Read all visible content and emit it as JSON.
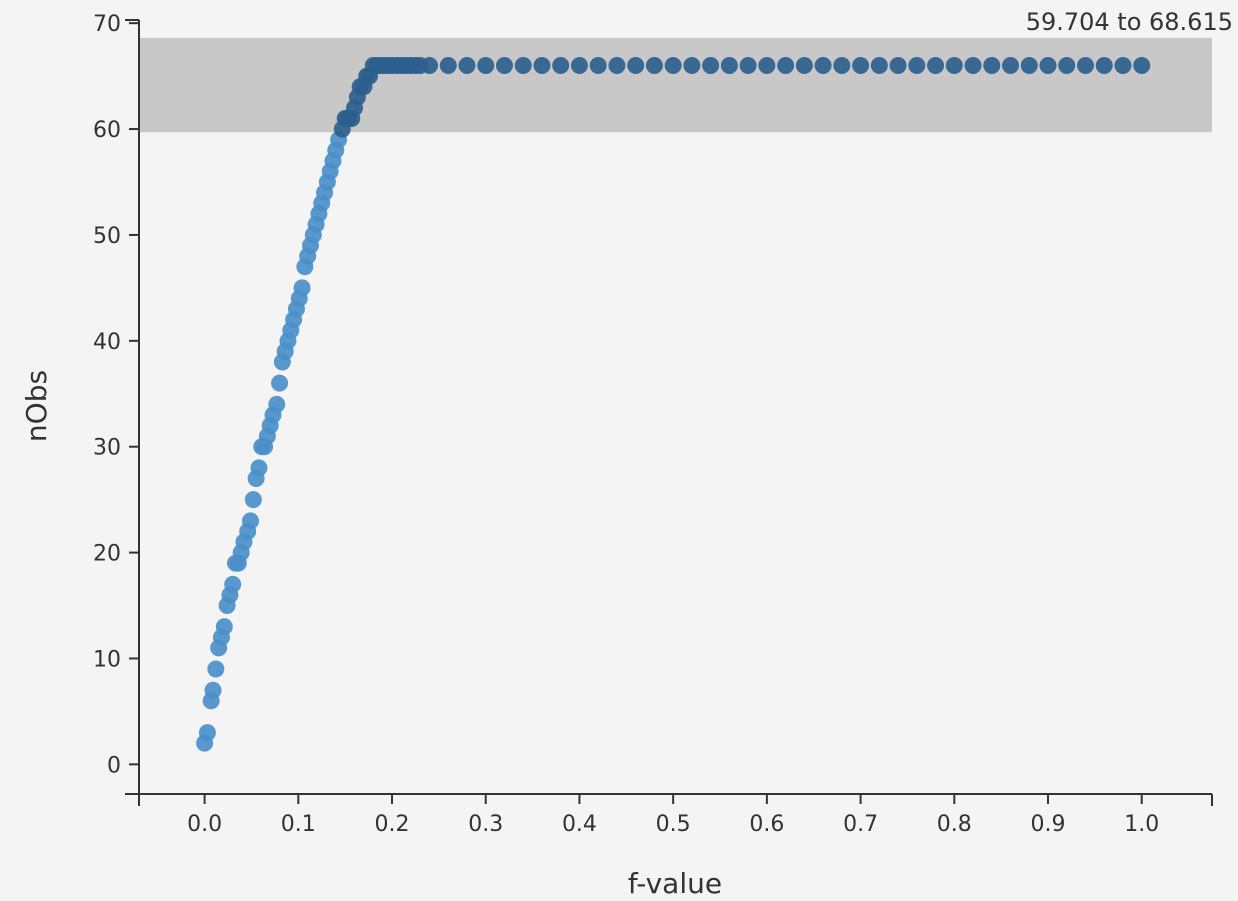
{
  "chart_data": {
    "type": "scatter",
    "xlabel": "f-value",
    "ylabel": "nObs",
    "xlim": [
      -0.07,
      1.075
    ],
    "ylim": [
      -2.8,
      70.3
    ],
    "x_ticks": [
      "0.0",
      "0.1",
      "0.2",
      "0.3",
      "0.4",
      "0.5",
      "0.6",
      "0.7",
      "0.8",
      "0.9",
      "1.0"
    ],
    "y_ticks": [
      "0",
      "10",
      "20",
      "30",
      "40",
      "50",
      "60",
      "70"
    ],
    "grid": false,
    "band": {
      "from": 59.704,
      "to": 68.615,
      "label": "59.704 to 68.615",
      "color": "#c8c8c8"
    },
    "point_color_low": "#4a8fc8",
    "point_color_high": "#2d5f8e",
    "series": [
      {
        "x": [
          0.0,
          0.003,
          0.007,
          0.009,
          0.012,
          0.015,
          0.018,
          0.021,
          0.024,
          0.027,
          0.03,
          0.033,
          0.036,
          0.039,
          0.042,
          0.046,
          0.049,
          0.052,
          0.055,
          0.058,
          0.061,
          0.064,
          0.067,
          0.07,
          0.073,
          0.077,
          0.08,
          0.083,
          0.086,
          0.089,
          0.092,
          0.095,
          0.098,
          0.101,
          0.104,
          0.107,
          0.11,
          0.113,
          0.116,
          0.119,
          0.122,
          0.125,
          0.128,
          0.131,
          0.134,
          0.137,
          0.14,
          0.143,
          0.147,
          0.15,
          0.153,
          0.157,
          0.16,
          0.163,
          0.166,
          0.17,
          0.173,
          0.176,
          0.18,
          0.184,
          0.188,
          0.192,
          0.196,
          0.2,
          0.205,
          0.21,
          0.215,
          0.22,
          0.225,
          0.23,
          0.24,
          0.26,
          0.28,
          0.3,
          0.32,
          0.34,
          0.36,
          0.38,
          0.4,
          0.42,
          0.44,
          0.46,
          0.48,
          0.5,
          0.52,
          0.54,
          0.56,
          0.58,
          0.6,
          0.62,
          0.64,
          0.66,
          0.68,
          0.7,
          0.72,
          0.74,
          0.76,
          0.78,
          0.8,
          0.82,
          0.84,
          0.86,
          0.88,
          0.9,
          0.92,
          0.94,
          0.96,
          0.98,
          1.0
        ],
        "y": [
          2,
          3,
          6,
          7,
          9,
          11,
          12,
          13,
          15,
          16,
          17,
          19,
          19,
          20,
          21,
          22,
          23,
          25,
          27,
          28,
          30,
          30,
          31,
          32,
          33,
          34,
          36,
          38,
          39,
          40,
          41,
          42,
          43,
          44,
          45,
          47,
          48,
          49,
          50,
          51,
          52,
          53,
          54,
          55,
          56,
          57,
          58,
          59,
          60,
          61,
          61,
          61,
          62,
          63,
          64,
          64,
          65,
          65,
          66,
          66,
          66,
          66,
          66,
          66,
          66,
          66,
          66,
          66,
          66,
          66,
          66,
          66,
          66,
          66,
          66,
          66,
          66,
          66,
          66,
          66,
          66,
          66,
          66,
          66,
          66,
          66,
          66,
          66,
          66,
          66,
          66,
          66,
          66,
          66,
          66,
          66,
          66,
          66,
          66,
          66,
          66,
          66,
          66,
          66,
          66,
          66,
          66,
          66,
          66
        ]
      }
    ]
  }
}
